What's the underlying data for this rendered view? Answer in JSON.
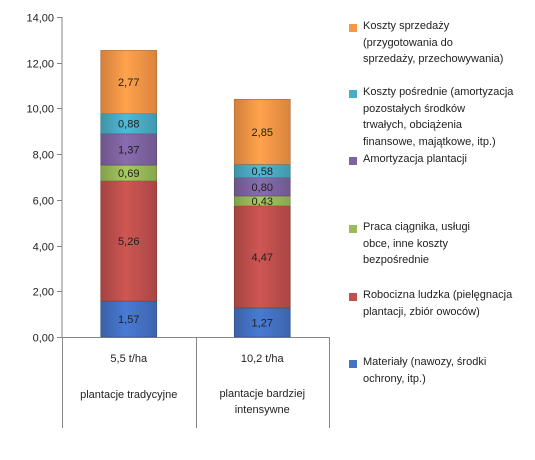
{
  "chart_data": {
    "type": "bar",
    "stacked": true,
    "title": "",
    "xlabel": "",
    "ylabel": "",
    "ylim": [
      0,
      14
    ],
    "yticks": [
      "0,00",
      "2,00",
      "4,00",
      "6,00",
      "8,00",
      "10,00",
      "12,00",
      "14,00"
    ],
    "grid": false,
    "legend_position": "right",
    "categories": [
      [
        "5,5 t/ha",
        "plantacje tradycyjne"
      ],
      [
        "10,2 t/ha",
        "plantacje bardziej",
        "intensywne"
      ]
    ],
    "series": [
      {
        "name": "Materiały (nawozy,  środki ochrony, itp.)",
        "values": [
          1.57,
          1.27
        ],
        "labels": [
          "1,57",
          "1,27"
        ],
        "color": "#4472C4"
      },
      {
        "name": "Robocizna ludzka (pielęgnacja plantacji, zbiór owoców)",
        "values": [
          5.26,
          4.47
        ],
        "labels": [
          "5,26",
          "4,47"
        ],
        "color": "#C0504D"
      },
      {
        "name": "Praca ciągnika, usługi obce, inne koszty bezpośrednie",
        "values": [
          0.69,
          0.43
        ],
        "labels": [
          "0,69",
          "0,43"
        ],
        "color": "#9BBB59"
      },
      {
        "name": "Amortyzacja plantacji",
        "values": [
          1.37,
          0.8
        ],
        "labels": [
          "1,37",
          "0,80"
        ],
        "color": "#8064A2"
      },
      {
        "name": "Koszty pośrednie (amortyzacja pozostałych środków trwałych, obciążenia finansowe, majątkowe,  itp.)",
        "values": [
          0.88,
          0.58
        ],
        "labels": [
          "0,88",
          "0,58"
        ],
        "color": "#4BACC6"
      },
      {
        "name": "Koszty sprzedaży (przygotowania do sprzedaży, przechowywania)",
        "values": [
          2.77,
          2.85
        ],
        "labels": [
          "2,77",
          "2,85"
        ],
        "color": "#F79646"
      }
    ]
  },
  "legend": {
    "items": [
      {
        "lines": [
          "Koszty sprzedaży",
          "(przygotowania do",
          "sprzedaży, przechowywania)"
        ],
        "color": "#F79646"
      },
      {
        "lines": [
          "Koszty pośrednie (amortyzacja",
          "pozostałych środków",
          "trwałych, obciążenia",
          "finansowe, majątkowe,  itp.)"
        ],
        "color": "#4BACC6"
      },
      {
        "lines": [
          "Amortyzacja plantacji"
        ],
        "color": "#8064A2"
      },
      {
        "lines": [
          "Praca ciągnika, usługi",
          "obce, inne koszty",
          "bezpośrednie"
        ],
        "color": "#9BBB59"
      },
      {
        "lines": [
          "Robocizna ludzka (pielęgnacja",
          "plantacji, zbiór owoców)"
        ],
        "color": "#C0504D"
      },
      {
        "lines": [
          "Materiały (nawozy,  środki",
          "ochrony, itp.)"
        ],
        "color": "#4472C4"
      }
    ]
  }
}
